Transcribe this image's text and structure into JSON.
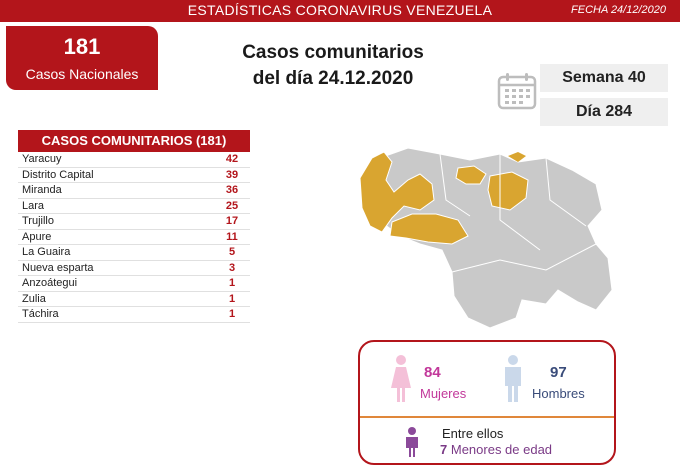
{
  "header": {
    "title": "ESTADÍSTICAS CORONAVIRUS VENEZUELA",
    "date": "FECHA 24/12/2020"
  },
  "national": {
    "number": "181",
    "label": "Casos Nacionales"
  },
  "headline": {
    "line1": "Casos comunitarios",
    "line2": "del día 24.12.2020"
  },
  "calendar": {
    "icon": "calendar-icon",
    "week": "Semana 40",
    "day": "Día 284"
  },
  "table": {
    "title": "CASOS COMUNITARIOS (181)",
    "rows": [
      {
        "state": "Yaracuy",
        "count": "42"
      },
      {
        "state": "Distrito Capital",
        "count": "39"
      },
      {
        "state": "Miranda",
        "count": "36"
      },
      {
        "state": "Lara",
        "count": "25"
      },
      {
        "state": "Trujillo",
        "count": "17"
      },
      {
        "state": "Apure",
        "count": "11"
      },
      {
        "state": "La Guaira",
        "count": "5"
      },
      {
        "state": "Nueva esparta",
        "count": "3"
      },
      {
        "state": "Anzoátegui",
        "count": "1"
      },
      {
        "state": "Zulia",
        "count": "1"
      },
      {
        "state": "Táchira",
        "count": "1"
      }
    ]
  },
  "map": {
    "highlight_color": "#d9a530",
    "base_color": "#c9c9c9"
  },
  "gender": {
    "women_count": "84",
    "women_label": "Mujeres",
    "men_count": "97",
    "men_label": "Hombres",
    "minors_intro": "Entre ellos",
    "minors_count": "7",
    "minors_label": "Menores de edad"
  },
  "colors": {
    "brand_red": "#b3151b",
    "women": "#c2389a",
    "men": "#3a4c7a",
    "minors": "#7a3a86"
  }
}
